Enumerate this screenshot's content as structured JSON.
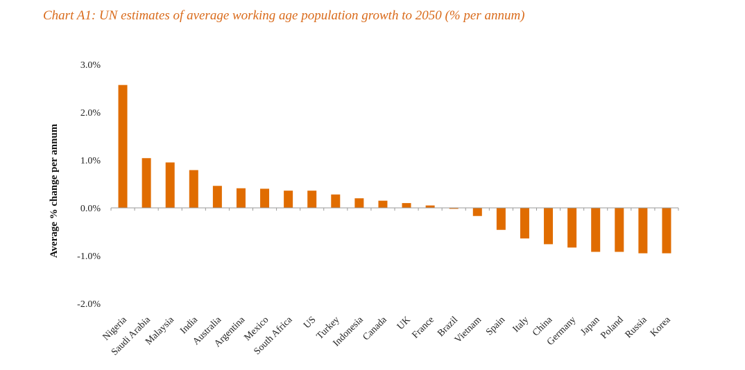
{
  "chart_data": {
    "type": "bar",
    "title": "Chart A1: UN estimates of average working age population growth to 2050 (% per annum)",
    "xlabel": "",
    "ylabel": "Average % change per annum",
    "ylim": [
      -2.0,
      3.0
    ],
    "yticks": [
      "3.0%",
      "2.0%",
      "1.0%",
      "0.0%",
      "-1.0%",
      "-2.0%"
    ],
    "ytick_values": [
      3.0,
      2.0,
      1.0,
      0.0,
      -1.0,
      -2.0
    ],
    "grid": false,
    "bar_color": "#e06c00",
    "categories": [
      "Nigeria",
      "Saudi Arabia",
      "Malaysia",
      "India",
      "Australia",
      "Argentina",
      "Mexico",
      "South Africa",
      "US",
      "Turkey",
      "Indonesia",
      "Canada",
      "UK",
      "France",
      "Brazil",
      "Vietnam",
      "Spain",
      "Italy",
      "China",
      "Germany",
      "Japan",
      "Poland",
      "Russia",
      "Korea"
    ],
    "values": [
      2.57,
      1.04,
      0.95,
      0.79,
      0.46,
      0.41,
      0.4,
      0.36,
      0.36,
      0.28,
      0.2,
      0.15,
      0.1,
      0.05,
      -0.02,
      -0.17,
      -0.46,
      -0.64,
      -0.76,
      -0.83,
      -0.92,
      -0.92,
      -0.95,
      -0.95
    ]
  }
}
